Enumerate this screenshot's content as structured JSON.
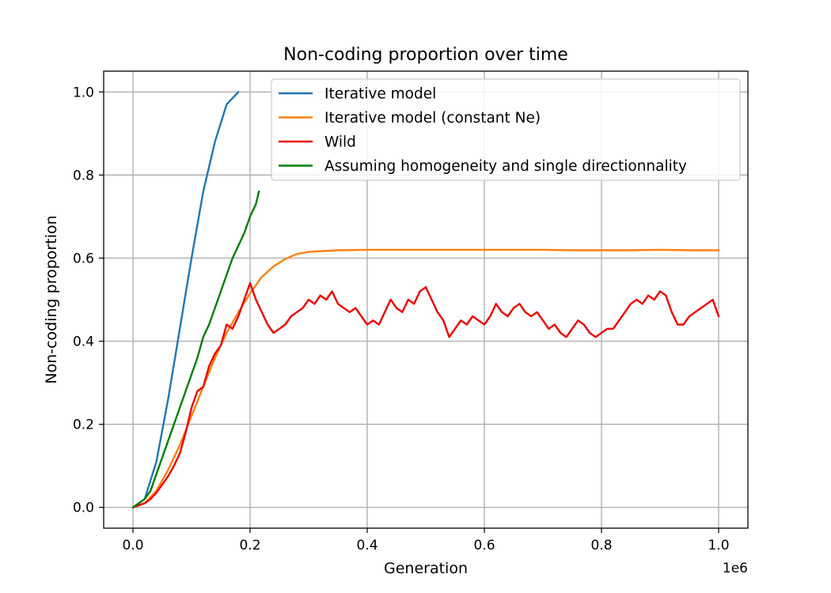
{
  "chart_data": {
    "type": "line",
    "title": "Non-coding proportion over time",
    "xlabel": "Generation",
    "ylabel": "Non-coding proportion",
    "x_offset_label": "1e6",
    "x_scale": 1000000,
    "xlim": [
      -50000,
      1050000
    ],
    "ylim": [
      -0.05,
      1.05
    ],
    "x_ticks": [
      0,
      200000,
      400000,
      600000,
      800000,
      1000000
    ],
    "x_tick_labels": [
      "0.0",
      "0.2",
      "0.4",
      "0.6",
      "0.8",
      "1.0"
    ],
    "y_ticks": [
      0,
      0.2,
      0.4,
      0.6,
      0.8,
      1.0
    ],
    "y_tick_labels": [
      "0.0",
      "0.2",
      "0.4",
      "0.6",
      "0.8",
      "1.0"
    ],
    "grid": true,
    "legend_position": "top-right",
    "series": [
      {
        "name": "Iterative model",
        "color": "#1f77b4",
        "x": [
          0,
          20000,
          40000,
          60000,
          80000,
          100000,
          120000,
          140000,
          160000,
          180000
        ],
        "y": [
          0,
          0.02,
          0.11,
          0.26,
          0.43,
          0.6,
          0.76,
          0.88,
          0.97,
          1.0
        ]
      },
      {
        "name": "Iterative model (constant Ne)",
        "color": "#ff7f0e",
        "x": [
          0,
          20000,
          40000,
          60000,
          80000,
          100000,
          120000,
          140000,
          160000,
          180000,
          200000,
          220000,
          240000,
          260000,
          280000,
          300000,
          350000,
          400000,
          450000,
          500000,
          550000,
          600000,
          650000,
          700000,
          750000,
          800000,
          850000,
          900000,
          950000,
          1000000
        ],
        "y": [
          0,
          0.01,
          0.04,
          0.09,
          0.15,
          0.22,
          0.29,
          0.36,
          0.42,
          0.47,
          0.515,
          0.555,
          0.58,
          0.598,
          0.61,
          0.615,
          0.619,
          0.62,
          0.62,
          0.62,
          0.62,
          0.62,
          0.62,
          0.62,
          0.619,
          0.619,
          0.619,
          0.62,
          0.619,
          0.619
        ]
      },
      {
        "name": "Wild",
        "color": "#ee0000",
        "x": [
          0,
          10000,
          20000,
          30000,
          40000,
          50000,
          60000,
          70000,
          80000,
          90000,
          100000,
          110000,
          120000,
          130000,
          140000,
          150000,
          160000,
          170000,
          180000,
          190000,
          200000,
          210000,
          220000,
          230000,
          240000,
          250000,
          260000,
          270000,
          280000,
          290000,
          300000,
          310000,
          320000,
          330000,
          340000,
          350000,
          360000,
          370000,
          380000,
          390000,
          400000,
          410000,
          420000,
          430000,
          440000,
          450000,
          460000,
          470000,
          480000,
          490000,
          500000,
          510000,
          520000,
          530000,
          540000,
          550000,
          560000,
          570000,
          580000,
          590000,
          600000,
          610000,
          620000,
          630000,
          640000,
          650000,
          660000,
          670000,
          680000,
          690000,
          700000,
          710000,
          720000,
          730000,
          740000,
          750000,
          760000,
          770000,
          780000,
          790000,
          800000,
          810000,
          820000,
          830000,
          840000,
          850000,
          860000,
          870000,
          880000,
          890000,
          900000,
          910000,
          920000,
          930000,
          940000,
          950000,
          960000,
          970000,
          980000,
          990000,
          1000000
        ],
        "y": [
          0,
          0.005,
          0.01,
          0.02,
          0.035,
          0.055,
          0.075,
          0.1,
          0.13,
          0.18,
          0.24,
          0.28,
          0.29,
          0.34,
          0.37,
          0.39,
          0.44,
          0.43,
          0.46,
          0.5,
          0.54,
          0.5,
          0.47,
          0.44,
          0.42,
          0.43,
          0.44,
          0.46,
          0.47,
          0.48,
          0.5,
          0.49,
          0.51,
          0.5,
          0.52,
          0.49,
          0.48,
          0.47,
          0.48,
          0.46,
          0.44,
          0.45,
          0.44,
          0.47,
          0.5,
          0.48,
          0.47,
          0.5,
          0.49,
          0.52,
          0.53,
          0.5,
          0.47,
          0.45,
          0.41,
          0.43,
          0.45,
          0.44,
          0.46,
          0.45,
          0.44,
          0.46,
          0.49,
          0.47,
          0.46,
          0.48,
          0.49,
          0.47,
          0.46,
          0.47,
          0.45,
          0.43,
          0.44,
          0.42,
          0.41,
          0.43,
          0.45,
          0.44,
          0.42,
          0.41,
          0.42,
          0.43,
          0.43,
          0.45,
          0.47,
          0.49,
          0.5,
          0.49,
          0.51,
          0.5,
          0.52,
          0.51,
          0.47,
          0.44,
          0.44,
          0.46,
          0.47,
          0.48,
          0.49,
          0.5,
          0.46
        ]
      },
      {
        "name": "Assuming homogeneity and single directionnality",
        "color": "#008000",
        "x": [
          0,
          10000,
          20000,
          30000,
          40000,
          50000,
          60000,
          70000,
          80000,
          90000,
          100000,
          110000,
          120000,
          130000,
          140000,
          150000,
          160000,
          170000,
          180000,
          190000,
          200000,
          210000,
          215000
        ],
        "y": [
          0,
          0.01,
          0.02,
          0.04,
          0.08,
          0.12,
          0.16,
          0.2,
          0.24,
          0.28,
          0.32,
          0.36,
          0.41,
          0.44,
          0.48,
          0.52,
          0.56,
          0.6,
          0.63,
          0.66,
          0.7,
          0.73,
          0.76
        ]
      }
    ]
  }
}
